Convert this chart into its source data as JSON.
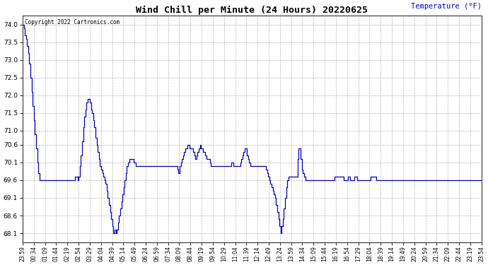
{
  "title": "Wind Chill per Minute (24 Hours) 20220625",
  "ylabel": "Temperature (°F)",
  "copyright": "Copyright 2022 Cartronics.com",
  "line_color": "#0000bb",
  "ylabel_color": "#0000cc",
  "background_color": "#ffffff",
  "ylim": [
    67.85,
    74.25
  ],
  "yticks": [
    68.1,
    68.6,
    69.1,
    69.6,
    70.1,
    70.6,
    71.0,
    71.5,
    72.0,
    72.5,
    73.0,
    73.5,
    74.0
  ],
  "xtick_labels": [
    "23:59",
    "00:34",
    "01:09",
    "01:44",
    "02:19",
    "02:54",
    "03:29",
    "04:04",
    "04:39",
    "05:14",
    "05:49",
    "06:24",
    "06:59",
    "07:34",
    "08:09",
    "08:44",
    "09:19",
    "09:54",
    "10:29",
    "11:04",
    "11:39",
    "12:14",
    "12:49",
    "13:24",
    "13:59",
    "14:34",
    "15:09",
    "15:44",
    "16:19",
    "16:54",
    "17:29",
    "18:04",
    "18:39",
    "19:14",
    "19:49",
    "20:24",
    "20:59",
    "21:34",
    "22:09",
    "22:44",
    "23:19",
    "23:54"
  ],
  "data_y": [
    74.0,
    73.9,
    73.7,
    73.6,
    73.4,
    73.2,
    72.9,
    72.5,
    72.1,
    71.7,
    71.3,
    70.9,
    70.5,
    70.1,
    69.8,
    69.6,
    69.6,
    69.6,
    69.6,
    69.6,
    69.6,
    69.6,
    69.6,
    69.6,
    69.6,
    69.6,
    69.6,
    69.6,
    69.6,
    69.6,
    69.6,
    69.6,
    69.6,
    69.6,
    69.6,
    69.6,
    69.6,
    69.6,
    69.6,
    69.6,
    69.6,
    69.6,
    69.6,
    69.6,
    69.6,
    69.6,
    69.6,
    69.7,
    69.7,
    69.6,
    69.7,
    70.0,
    70.3,
    70.7,
    71.1,
    71.4,
    71.6,
    71.8,
    71.9,
    71.9,
    71.8,
    71.6,
    71.5,
    71.3,
    71.1,
    70.8,
    70.6,
    70.4,
    70.2,
    70.0,
    69.9,
    69.8,
    69.7,
    69.6,
    69.5,
    69.3,
    69.1,
    68.9,
    68.7,
    68.5,
    68.3,
    68.1,
    68.2,
    68.1,
    68.2,
    68.4,
    68.6,
    68.8,
    69.0,
    69.2,
    69.4,
    69.6,
    69.8,
    70.0,
    70.1,
    70.2,
    70.2,
    70.2,
    70.2,
    70.1,
    70.1,
    70.0,
    70.0,
    70.0,
    70.0,
    70.0,
    70.0,
    70.0,
    70.0,
    70.0,
    70.0,
    70.0,
    70.0,
    70.0,
    70.0,
    70.0,
    70.0,
    70.0,
    70.0,
    70.0,
    70.0,
    70.0,
    70.0,
    70.0,
    70.0,
    70.0,
    70.0,
    70.0,
    70.0,
    70.0,
    70.0,
    70.0,
    70.0,
    70.0,
    70.0,
    70.0,
    70.0,
    70.0,
    69.9,
    69.8,
    70.0,
    70.1,
    70.2,
    70.3,
    70.4,
    70.5,
    70.5,
    70.6,
    70.6,
    70.5,
    70.5,
    70.5,
    70.4,
    70.3,
    70.2,
    70.3,
    70.4,
    70.5,
    70.6,
    70.5,
    70.5,
    70.4,
    70.4,
    70.3,
    70.2,
    70.2,
    70.2,
    70.1,
    70.0,
    70.0,
    70.0,
    70.0,
    70.0,
    70.0,
    70.0,
    70.0,
    70.0,
    70.0,
    70.0,
    70.0,
    70.0,
    70.0,
    70.0,
    70.0,
    70.0,
    70.0,
    70.1,
    70.1,
    70.0,
    70.0,
    70.0,
    70.0,
    70.0,
    70.0,
    70.1,
    70.2,
    70.3,
    70.4,
    70.5,
    70.5,
    70.3,
    70.2,
    70.1,
    70.0,
    70.0,
    70.0,
    70.0,
    70.0,
    70.0,
    70.0,
    70.0,
    70.0,
    70.0,
    70.0,
    70.0,
    70.0,
    70.0,
    69.9,
    69.8,
    69.7,
    69.6,
    69.5,
    69.4,
    69.3,
    69.2,
    69.1,
    68.9,
    68.7,
    68.5,
    68.3,
    68.1,
    68.3,
    68.5,
    68.8,
    69.1,
    69.4,
    69.6,
    69.7,
    69.7,
    69.7,
    69.7,
    69.7,
    69.7,
    69.7,
    69.7,
    70.2,
    70.5,
    70.5,
    70.2,
    69.9,
    69.8,
    69.7,
    69.6,
    69.6,
    69.6,
    69.6,
    69.6,
    69.6,
    69.6,
    69.6,
    69.6,
    69.6,
    69.6,
    69.6,
    69.6,
    69.6,
    69.6,
    69.6,
    69.6,
    69.6,
    69.6,
    69.6,
    69.6,
    69.6,
    69.6,
    69.6,
    69.6,
    69.6,
    69.7,
    69.7,
    69.7,
    69.7,
    69.7,
    69.7,
    69.7,
    69.7,
    69.6,
    69.6,
    69.6,
    69.6,
    69.7,
    69.7,
    69.6,
    69.6,
    69.6,
    69.6,
    69.7,
    69.7,
    69.6,
    69.6,
    69.6,
    69.6,
    69.6,
    69.6,
    69.6,
    69.6,
    69.6,
    69.6,
    69.6,
    69.6,
    69.7,
    69.7,
    69.7,
    69.7,
    69.7,
    69.6,
    69.6,
    69.6,
    69.6,
    69.6,
    69.6,
    69.6,
    69.6,
    69.6,
    69.6,
    69.6,
    69.6,
    69.6,
    69.6,
    69.6,
    69.6,
    69.6,
    69.6,
    69.6,
    69.6,
    69.6,
    69.6,
    69.6,
    69.6,
    69.6,
    69.6,
    69.6,
    69.6,
    69.6,
    69.6,
    69.6,
    69.6,
    69.6,
    69.6,
    69.6,
    69.6,
    69.6,
    69.6,
    69.6,
    69.6,
    69.6,
    69.6,
    69.6,
    69.6,
    69.6,
    69.6,
    69.6,
    69.6,
    69.6,
    69.6,
    69.6,
    69.6,
    69.6,
    69.6,
    69.6,
    69.6,
    69.6,
    69.6,
    69.6,
    69.6,
    69.6,
    69.6,
    69.6,
    69.6,
    69.6,
    69.6,
    69.6,
    69.6,
    69.6,
    69.6,
    69.6,
    69.6,
    69.6,
    69.6,
    69.6,
    69.6,
    69.6,
    69.6,
    69.6,
    69.6,
    69.6,
    69.6,
    69.6,
    69.6,
    69.6,
    69.6,
    69.6,
    69.6,
    69.6,
    69.6,
    69.6,
    69.6,
    69.6,
    69.6,
    69.6
  ]
}
